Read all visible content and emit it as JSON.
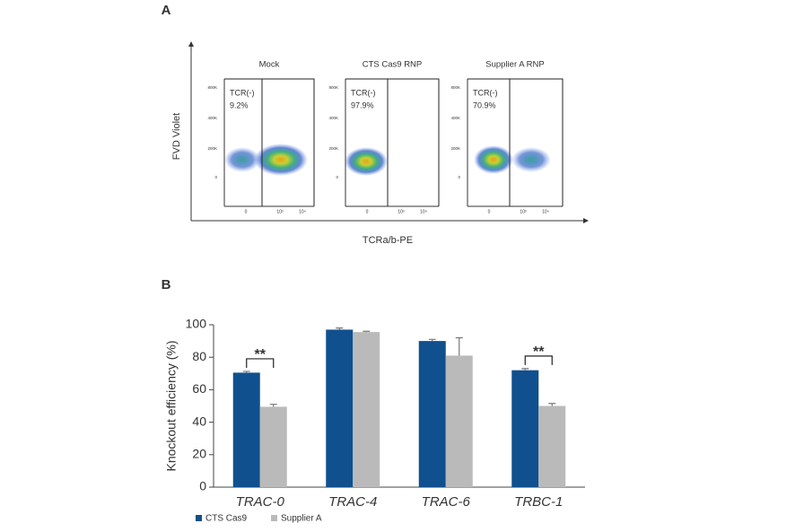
{
  "panel_a": {
    "letter": "A",
    "y_label": "FVD Violet",
    "x_label": "TCRa/b-PE",
    "plots": [
      {
        "title": "Mock",
        "gate": "TCR(-)",
        "percent": "9.2%"
      },
      {
        "title": "CTS Cas9 RNP",
        "gate": "TCR(-)",
        "percent": "97.9%"
      },
      {
        "title": "Supplier A RNP",
        "gate": "TCR(-)",
        "percent": "70.9%"
      }
    ],
    "ytick_labels": [
      "800K",
      "400K",
      "200K",
      "0"
    ],
    "xtick_labels": [
      "0",
      "10³",
      "10⁴"
    ]
  },
  "chart_data": {
    "type": "bar",
    "panel_letter": "B",
    "y_label": "Knockout efficiency (%)",
    "categories": [
      "TRAC-0",
      "TRAC-4",
      "TRAC-6",
      "TRBC-1"
    ],
    "series": [
      {
        "name": "CTS Cas9",
        "color": "#10508e",
        "values": [
          70.5,
          97,
          90,
          72
        ],
        "errors": [
          0.8,
          1,
          1,
          1
        ]
      },
      {
        "name": "Supplier A",
        "color": "#bababa",
        "values": [
          49.5,
          95.5,
          81,
          50
        ],
        "errors": [
          1.5,
          0.5,
          11,
          1.5
        ]
      }
    ],
    "significance": [
      "**",
      null,
      null,
      "**"
    ],
    "ylim": [
      0,
      100
    ],
    "yticks": [
      0,
      20,
      40,
      60,
      80,
      100
    ],
    "legend": "bottom-left"
  }
}
